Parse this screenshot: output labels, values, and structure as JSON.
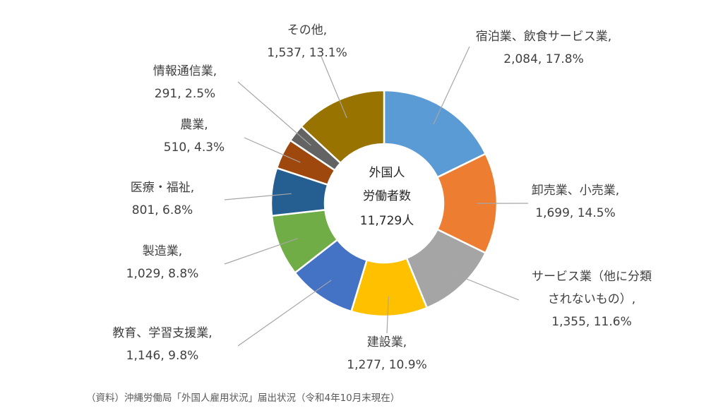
{
  "chart_data": {
    "type": "pie",
    "title": "",
    "center_label": [
      "外国人",
      "労働者数",
      "11,729人"
    ],
    "slices": [
      {
        "category": "宿泊業、飲食サービス業,",
        "value_label": "2,084, 17.8%",
        "value": 2084,
        "percent": 17.8,
        "color": "#5B9BD5"
      },
      {
        "category": "卸売業、小売業,",
        "value_label": "1,699, 14.5%",
        "value": 1699,
        "percent": 14.5,
        "color": "#ED7D31"
      },
      {
        "category": "サービス業（他に分類|されないもの）,",
        "value_label": "1,355, 11.6%",
        "value": 1355,
        "percent": 11.6,
        "color": "#A5A5A5"
      },
      {
        "category": "建設業,",
        "value_label": "1,277, 10.9%",
        "value": 1277,
        "percent": 10.9,
        "color": "#FFC000"
      },
      {
        "category": "教育、学習支援業,",
        "value_label": "1,146, 9.8%",
        "value": 1146,
        "percent": 9.8,
        "color": "#4472C4"
      },
      {
        "category": "製造業,",
        "value_label": "1,029, 8.8%",
        "value": 1029,
        "percent": 8.8,
        "color": "#70AD47"
      },
      {
        "category": "医療・福祉,",
        "value_label": "801, 6.8%",
        "value": 801,
        "percent": 6.8,
        "color": "#255E91"
      },
      {
        "category": "農業,",
        "value_label": "510, 4.3%",
        "value": 510,
        "percent": 4.3,
        "color": "#9E480E"
      },
      {
        "category": "情報通信業,",
        "value_label": "291, 2.5%",
        "value": 291,
        "percent": 2.5,
        "color": "#636363"
      },
      {
        "category": "その他,",
        "value_label": "1,537, 13.1%",
        "value": 1537,
        "percent": 13.1,
        "color": "#997300"
      }
    ],
    "legend": "none"
  },
  "footnote": "（資料）沖縄労働局「外国人雇用状況」届出状況（令和4年10月末現在）"
}
